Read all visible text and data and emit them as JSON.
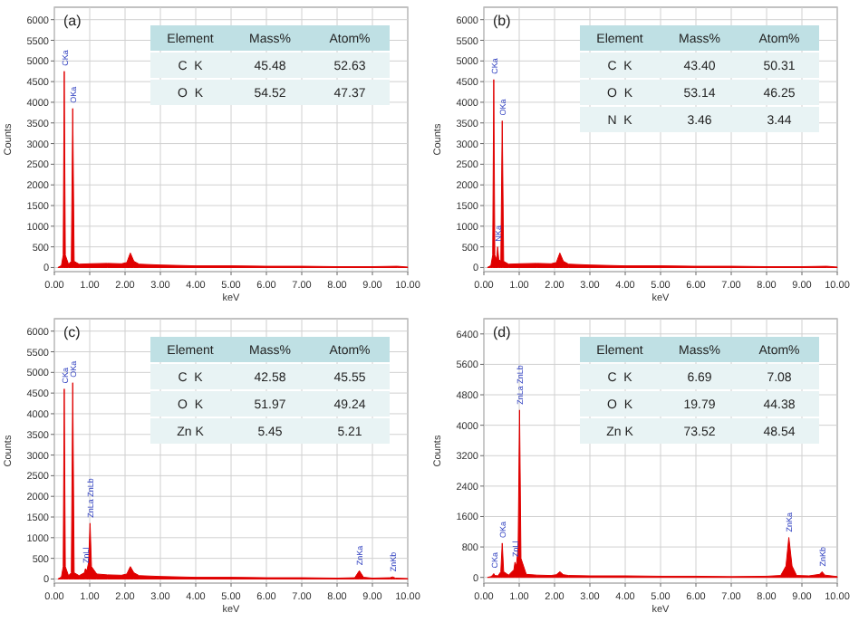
{
  "chart_data": [
    {
      "type": "area",
      "title": "(a)",
      "xlabel": "keV",
      "ylabel": "Counts",
      "grid": true,
      "xlim": [
        0,
        10
      ],
      "ylim": [
        -100,
        6300
      ],
      "xticks": [
        {
          "value": 0,
          "label": "0.00"
        },
        {
          "value": 1,
          "label": "1.00"
        },
        {
          "value": 2,
          "label": "2.00"
        },
        {
          "value": 3,
          "label": "3.00"
        },
        {
          "value": 4,
          "label": "4.00"
        },
        {
          "value": 5,
          "label": "5.00"
        },
        {
          "value": 6,
          "label": "6.00"
        },
        {
          "value": 7,
          "label": "7.00"
        },
        {
          "value": 8,
          "label": "8.00"
        },
        {
          "value": 9,
          "label": "9.00"
        },
        {
          "value": 10,
          "label": "10.00"
        }
      ],
      "yticks": [
        0,
        500,
        1000,
        1500,
        2000,
        2500,
        3000,
        3500,
        4000,
        4500,
        5000,
        5500,
        6000
      ],
      "series": [
        {
          "color": "#e00000",
          "x": [
            0.1,
            0.2,
            0.25,
            0.28,
            0.31,
            0.4,
            0.48,
            0.52,
            0.56,
            0.7,
            1.0,
            1.5,
            1.9,
            2.05,
            2.15,
            2.25,
            2.4,
            3,
            4,
            5,
            6,
            7,
            8,
            9,
            9.7,
            10
          ],
          "values": [
            0,
            50,
            300,
            4750,
            300,
            80,
            150,
            3850,
            150,
            80,
            90,
            100,
            90,
            120,
            350,
            150,
            80,
            60,
            40,
            40,
            30,
            30,
            20,
            20,
            30,
            10
          ]
        }
      ],
      "annotations": [
        "Element",
        "Mass%",
        "Atom%",
        "C  K",
        "45.48",
        "52.63",
        "O  K",
        "54.52",
        "47.37",
        {
          "text": "CKa",
          "x": 0.28,
          "y": 4750
        },
        {
          "text": "OKa",
          "x": 0.52,
          "y": 3850
        }
      ]
    },
    {
      "type": "area",
      "title": "(b)",
      "xlabel": "keV",
      "ylabel": "Counts",
      "grid": true,
      "xlim": [
        0,
        10
      ],
      "ylim": [
        -100,
        6300
      ],
      "xticks": [
        {
          "value": 0,
          "label": "0.00"
        },
        {
          "value": 1,
          "label": "1.00"
        },
        {
          "value": 2,
          "label": "2.00"
        },
        {
          "value": 3,
          "label": "3.00"
        },
        {
          "value": 4,
          "label": "4.00"
        },
        {
          "value": 5,
          "label": "5.00"
        },
        {
          "value": 6,
          "label": "6.00"
        },
        {
          "value": 7,
          "label": "7.00"
        },
        {
          "value": 8,
          "label": "8.00"
        },
        {
          "value": 9,
          "label": "9.00"
        },
        {
          "value": 10,
          "label": "10.00"
        }
      ],
      "yticks": [
        0,
        500,
        1000,
        1500,
        2000,
        2500,
        3000,
        3500,
        4000,
        4500,
        5000,
        5500,
        6000
      ],
      "series": [
        {
          "color": "#e00000",
          "x": [
            0.1,
            0.2,
            0.25,
            0.28,
            0.31,
            0.36,
            0.39,
            0.42,
            0.48,
            0.52,
            0.56,
            0.7,
            1.0,
            1.5,
            1.9,
            2.05,
            2.15,
            2.25,
            2.4,
            3,
            4,
            5,
            6,
            7,
            8,
            9,
            9.7,
            10
          ],
          "values": [
            0,
            50,
            300,
            4550,
            300,
            200,
            500,
            200,
            150,
            3550,
            150,
            80,
            90,
            100,
            90,
            120,
            350,
            150,
            80,
            60,
            40,
            40,
            30,
            30,
            20,
            20,
            30,
            10
          ]
        }
      ],
      "annotations": [
        "Element",
        "Mass%",
        "Atom%",
        "C  K",
        "43.40",
        "50.31",
        "O  K",
        "53.14",
        "46.25",
        "N  K",
        "3.46",
        "3.44",
        {
          "text": "CKa",
          "x": 0.28,
          "y": 4550
        },
        {
          "text": "NKa",
          "x": 0.39,
          "y": 500
        },
        {
          "text": "OKa",
          "x": 0.52,
          "y": 3550
        }
      ]
    },
    {
      "type": "area",
      "title": "(c)",
      "xlabel": "keV",
      "ylabel": "Counts",
      "grid": true,
      "xlim": [
        0,
        10
      ],
      "ylim": [
        -100,
        6300
      ],
      "xticks": [
        {
          "value": 0,
          "label": "0.00"
        },
        {
          "value": 1,
          "label": "1.00"
        },
        {
          "value": 2,
          "label": "2.00"
        },
        {
          "value": 3,
          "label": "3.00"
        },
        {
          "value": 4,
          "label": "4.00"
        },
        {
          "value": 5,
          "label": "5.00"
        },
        {
          "value": 6,
          "label": "6.00"
        },
        {
          "value": 7,
          "label": "7.00"
        },
        {
          "value": 8,
          "label": "8.00"
        },
        {
          "value": 9,
          "label": "9.00"
        },
        {
          "value": 10,
          "label": "10.00"
        }
      ],
      "yticks": [
        0,
        500,
        1000,
        1500,
        2000,
        2500,
        3000,
        3500,
        4000,
        4500,
        5000,
        5500,
        6000
      ],
      "series": [
        {
          "color": "#e00000",
          "x": [
            0.1,
            0.2,
            0.25,
            0.28,
            0.31,
            0.4,
            0.48,
            0.52,
            0.56,
            0.7,
            0.85,
            0.88,
            0.92,
            0.97,
            1.01,
            1.05,
            1.2,
            1.5,
            1.9,
            2.05,
            2.15,
            2.25,
            2.4,
            3,
            4,
            5,
            6,
            7,
            8,
            8.5,
            8.63,
            8.75,
            9,
            9.5,
            9.57,
            9.65,
            10
          ],
          "values": [
            0,
            50,
            300,
            4600,
            300,
            80,
            150,
            4750,
            150,
            80,
            150,
            250,
            200,
            400,
            1350,
            300,
            120,
            100,
            90,
            120,
            300,
            150,
            80,
            60,
            40,
            40,
            30,
            30,
            20,
            30,
            200,
            40,
            20,
            30,
            50,
            20,
            10
          ]
        }
      ],
      "annotations": [
        "Element",
        "Mass%",
        "Atom%",
        "C  K",
        "42.58",
        "45.55",
        "O  K",
        "51.97",
        "49.24",
        "Zn K",
        "5.45",
        "5.21",
        {
          "text": "CKa",
          "x": 0.28,
          "y": 4600
        },
        {
          "text": "OKa",
          "x": 0.52,
          "y": 4750
        },
        {
          "text": "ZnLl",
          "x": 0.88,
          "y": 250
        },
        {
          "text": "ZnLa ZnLb",
          "x": 1.01,
          "y": 1350
        },
        {
          "text": "ZnKa",
          "x": 8.63,
          "y": 200
        },
        {
          "text": "ZnKb",
          "x": 9.57,
          "y": 50
        }
      ]
    },
    {
      "type": "area",
      "title": "(d)",
      "xlabel": "keV",
      "ylabel": "Counts",
      "grid": true,
      "xlim": [
        0,
        10
      ],
      "ylim": [
        -150,
        6800
      ],
      "xticks": [
        {
          "value": 0,
          "label": "0.00"
        },
        {
          "value": 1,
          "label": "1.00"
        },
        {
          "value": 2,
          "label": "2.00"
        },
        {
          "value": 3,
          "label": "3.00"
        },
        {
          "value": 4,
          "label": "4.00"
        },
        {
          "value": 5,
          "label": "5.00"
        },
        {
          "value": 6,
          "label": "6.00"
        },
        {
          "value": 7,
          "label": "7.00"
        },
        {
          "value": 8,
          "label": "8.00"
        },
        {
          "value": 9,
          "label": "9.00"
        },
        {
          "value": 10,
          "label": "10.00"
        }
      ],
      "yticks": [
        0,
        800,
        1600,
        2400,
        3200,
        4000,
        4800,
        5600,
        6400
      ],
      "series": [
        {
          "color": "#e00000",
          "x": [
            0.1,
            0.2,
            0.25,
            0.28,
            0.31,
            0.4,
            0.48,
            0.52,
            0.56,
            0.7,
            0.85,
            0.88,
            0.92,
            0.97,
            1.01,
            1.05,
            1.2,
            1.5,
            1.9,
            2.05,
            2.15,
            2.25,
            2.4,
            3,
            4,
            5,
            6,
            7,
            8,
            8.4,
            8.55,
            8.63,
            8.72,
            8.85,
            9.2,
            9.5,
            9.57,
            9.65,
            10
          ],
          "values": [
            0,
            20,
            60,
            100,
            50,
            40,
            150,
            900,
            150,
            60,
            200,
            400,
            300,
            800,
            4400,
            500,
            80,
            60,
            50,
            70,
            150,
            70,
            50,
            40,
            40,
            30,
            30,
            20,
            30,
            50,
            300,
            1050,
            300,
            50,
            40,
            80,
            150,
            60,
            20
          ]
        }
      ],
      "annotations": [
        "Element",
        "Mass%",
        "Atom%",
        "C  K",
        "6.69",
        "7.08",
        "O  K",
        "19.79",
        "44.38",
        "Zn K",
        "73.52",
        "48.54",
        {
          "text": "CKa",
          "x": 0.28,
          "y": 100
        },
        {
          "text": "OKa",
          "x": 0.52,
          "y": 900
        },
        {
          "text": "ZnLl",
          "x": 0.88,
          "y": 400
        },
        {
          "text": "ZnLa ZnLb",
          "x": 1.01,
          "y": 4400
        },
        {
          "text": "ZnKa",
          "x": 8.63,
          "y": 1050
        },
        {
          "text": "ZnKb",
          "x": 9.57,
          "y": 150
        }
      ]
    }
  ]
}
